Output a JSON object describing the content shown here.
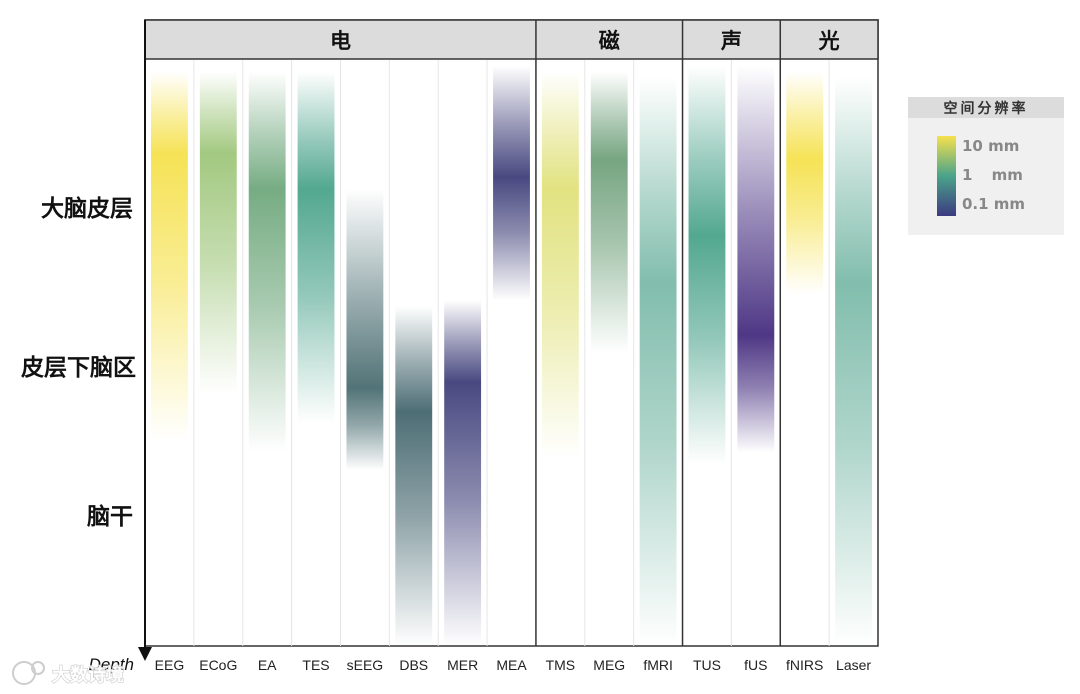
{
  "watermark": "大数诗境",
  "chart_data": {
    "type": "heatmap",
    "title": "",
    "groups": [
      {
        "name": "电",
        "columns": 8
      },
      {
        "name": "磁",
        "columns": 3
      },
      {
        "name": "声",
        "columns": 2
      },
      {
        "name": "光",
        "columns": 2
      }
    ],
    "categories": [
      "EEG",
      "ECoG",
      "EA",
      "TES",
      "sEEG",
      "DBS",
      "MER",
      "MEA",
      "TMS",
      "MEG",
      "fMRI",
      "TUS",
      "fUS",
      "fNIRS",
      "Laser"
    ],
    "xlabel": "Depth",
    "depth_levels": [
      "大脑皮层",
      "皮层下脑区",
      "脑干"
    ],
    "legend": {
      "title": "空间分辨率",
      "entries": [
        "10 mm",
        "1 mm",
        "0.1 mm"
      ],
      "colors": [
        "#f5e14d",
        "#4aa38a",
        "#3c3a80"
      ]
    },
    "bars": [
      {
        "name": "EEG",
        "start": 0.02,
        "end": 0.65,
        "peak": 0.16,
        "color": "#f5e14d"
      },
      {
        "name": "ECoG",
        "start": 0.02,
        "end": 0.57,
        "peak": 0.16,
        "color": "#9ec67a"
      },
      {
        "name": "EA",
        "start": 0.02,
        "end": 0.67,
        "peak": 0.22,
        "color": "#6fa87c"
      },
      {
        "name": "TES",
        "start": 0.02,
        "end": 0.62,
        "peak": 0.22,
        "color": "#4aa38a"
      },
      {
        "name": "sEEG",
        "start": 0.22,
        "end": 0.7,
        "peak": 0.56,
        "color": "#496c70"
      },
      {
        "name": "DBS",
        "start": 0.42,
        "end": 1.0,
        "peak": 0.6,
        "color": "#44666e"
      },
      {
        "name": "MER",
        "start": 0.41,
        "end": 1.0,
        "peak": 0.55,
        "color": "#3f3f7a"
      },
      {
        "name": "MEA",
        "start": 0.01,
        "end": 0.41,
        "peak": 0.2,
        "color": "#3f3f7a"
      },
      {
        "name": "TMS",
        "start": 0.02,
        "end": 0.68,
        "peak": 0.22,
        "color": "#e0e17a"
      },
      {
        "name": "MEG",
        "start": 0.02,
        "end": 0.5,
        "peak": 0.17,
        "color": "#6fa07a"
      },
      {
        "name": "fMRI",
        "start": 0.03,
        "end": 1.0,
        "peak": 0.38,
        "color": "#7bbaa8"
      },
      {
        "name": "TUS",
        "start": 0.01,
        "end": 0.69,
        "peak": 0.3,
        "color": "#4aa38a"
      },
      {
        "name": "fUS",
        "start": 0.01,
        "end": 0.67,
        "peak": 0.47,
        "color": "#452d7f"
      },
      {
        "name": "fNIRS",
        "start": 0.02,
        "end": 0.4,
        "peak": 0.17,
        "color": "#f5e14d"
      },
      {
        "name": "Laser",
        "start": 0.03,
        "end": 1.0,
        "peak": 0.38,
        "color": "#7bbaa8"
      }
    ]
  }
}
